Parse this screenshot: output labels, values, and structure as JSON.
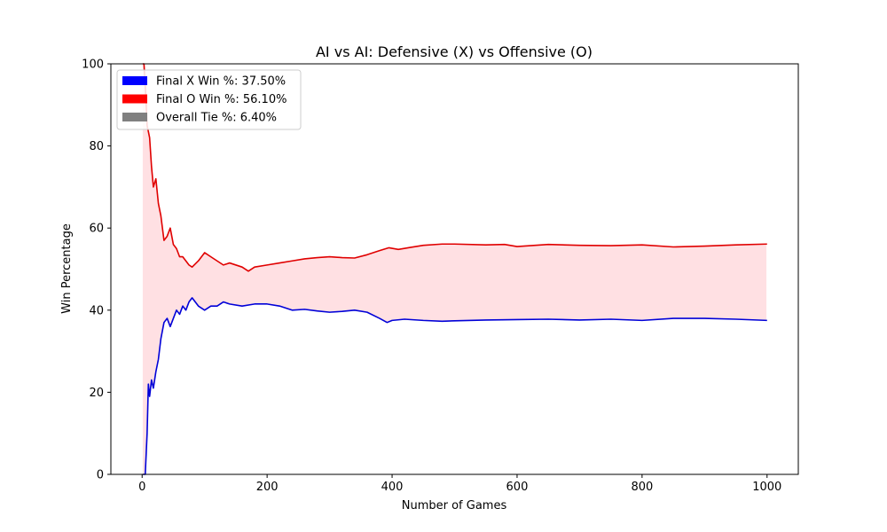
{
  "chart_data": {
    "type": "line",
    "title": "AI vs AI: Defensive (X) vs Offensive (O)",
    "xlabel": "Number of Games",
    "ylabel": "Win Percentage",
    "xlim": [
      -50,
      1050
    ],
    "ylim": [
      0,
      100
    ],
    "xticks": [
      0,
      200,
      400,
      600,
      800,
      1000
    ],
    "yticks": [
      0,
      20,
      40,
      60,
      80,
      100
    ],
    "grid": false,
    "legend_position": "top-left",
    "fill_between": {
      "color": "#ffe0e3",
      "between": [
        "Final O Win %: 56.10%",
        "Final X Win %: 37.50%"
      ]
    },
    "series": [
      {
        "name": "Final X Win %: 37.50%",
        "color": "#0000d8",
        "points": [
          [
            1,
            0
          ],
          [
            5,
            0
          ],
          [
            8,
            10
          ],
          [
            10,
            22
          ],
          [
            12,
            19
          ],
          [
            15,
            23
          ],
          [
            18,
            21
          ],
          [
            22,
            25
          ],
          [
            26,
            28
          ],
          [
            30,
            33
          ],
          [
            35,
            37
          ],
          [
            40,
            38
          ],
          [
            45,
            36
          ],
          [
            50,
            38
          ],
          [
            55,
            40
          ],
          [
            60,
            39
          ],
          [
            65,
            41
          ],
          [
            70,
            40
          ],
          [
            75,
            42
          ],
          [
            80,
            43
          ],
          [
            90,
            41
          ],
          [
            100,
            40
          ],
          [
            110,
            41
          ],
          [
            120,
            41
          ],
          [
            130,
            42
          ],
          [
            140,
            41.5
          ],
          [
            160,
            41
          ],
          [
            180,
            41.5
          ],
          [
            200,
            41.5
          ],
          [
            220,
            41
          ],
          [
            240,
            40
          ],
          [
            260,
            40.2
          ],
          [
            280,
            39.8
          ],
          [
            300,
            39.5
          ],
          [
            320,
            39.7
          ],
          [
            340,
            40
          ],
          [
            360,
            39.5
          ],
          [
            380,
            38
          ],
          [
            392,
            37
          ],
          [
            400,
            37.5
          ],
          [
            420,
            37.8
          ],
          [
            450,
            37.5
          ],
          [
            480,
            37.3
          ],
          [
            500,
            37.4
          ],
          [
            550,
            37.6
          ],
          [
            600,
            37.7
          ],
          [
            650,
            37.8
          ],
          [
            700,
            37.6
          ],
          [
            750,
            37.8
          ],
          [
            800,
            37.5
          ],
          [
            850,
            38
          ],
          [
            900,
            38
          ],
          [
            950,
            37.8
          ],
          [
            1000,
            37.5
          ]
        ]
      },
      {
        "name": "Final O Win %: 56.10%",
        "color": "#e00000",
        "points": [
          [
            1,
            100
          ],
          [
            3,
            100
          ],
          [
            6,
            92
          ],
          [
            8,
            85
          ],
          [
            12,
            82
          ],
          [
            15,
            75
          ],
          [
            18,
            70
          ],
          [
            22,
            72
          ],
          [
            26,
            66
          ],
          [
            30,
            63
          ],
          [
            35,
            57
          ],
          [
            40,
            58
          ],
          [
            45,
            60
          ],
          [
            50,
            56
          ],
          [
            55,
            55
          ],
          [
            60,
            53
          ],
          [
            65,
            53
          ],
          [
            70,
            52
          ],
          [
            75,
            51
          ],
          [
            80,
            50.5
          ],
          [
            90,
            52
          ],
          [
            100,
            54
          ],
          [
            110,
            53
          ],
          [
            120,
            52
          ],
          [
            130,
            51
          ],
          [
            140,
            51.5
          ],
          [
            160,
            50.5
          ],
          [
            170,
            49.5
          ],
          [
            180,
            50.5
          ],
          [
            200,
            51
          ],
          [
            220,
            51.5
          ],
          [
            240,
            52
          ],
          [
            260,
            52.5
          ],
          [
            280,
            52.8
          ],
          [
            300,
            53
          ],
          [
            320,
            52.8
          ],
          [
            340,
            52.7
          ],
          [
            360,
            53.5
          ],
          [
            380,
            54.5
          ],
          [
            395,
            55.2
          ],
          [
            410,
            54.8
          ],
          [
            430,
            55.3
          ],
          [
            450,
            55.8
          ],
          [
            480,
            56.1
          ],
          [
            500,
            56.1
          ],
          [
            550,
            55.9
          ],
          [
            580,
            56
          ],
          [
            600,
            55.5
          ],
          [
            650,
            56
          ],
          [
            700,
            55.8
          ],
          [
            750,
            55.7
          ],
          [
            800,
            55.9
          ],
          [
            850,
            55.4
          ],
          [
            900,
            55.6
          ],
          [
            950,
            55.9
          ],
          [
            1000,
            56.1
          ]
        ]
      }
    ],
    "legend": [
      {
        "label": "Final X Win %: 37.50%",
        "color": "#0000ff"
      },
      {
        "label": "Final O Win %: 56.10%",
        "color": "#ff0000"
      },
      {
        "label": "Overall Tie %: 6.40%",
        "color": "#808080"
      }
    ]
  }
}
